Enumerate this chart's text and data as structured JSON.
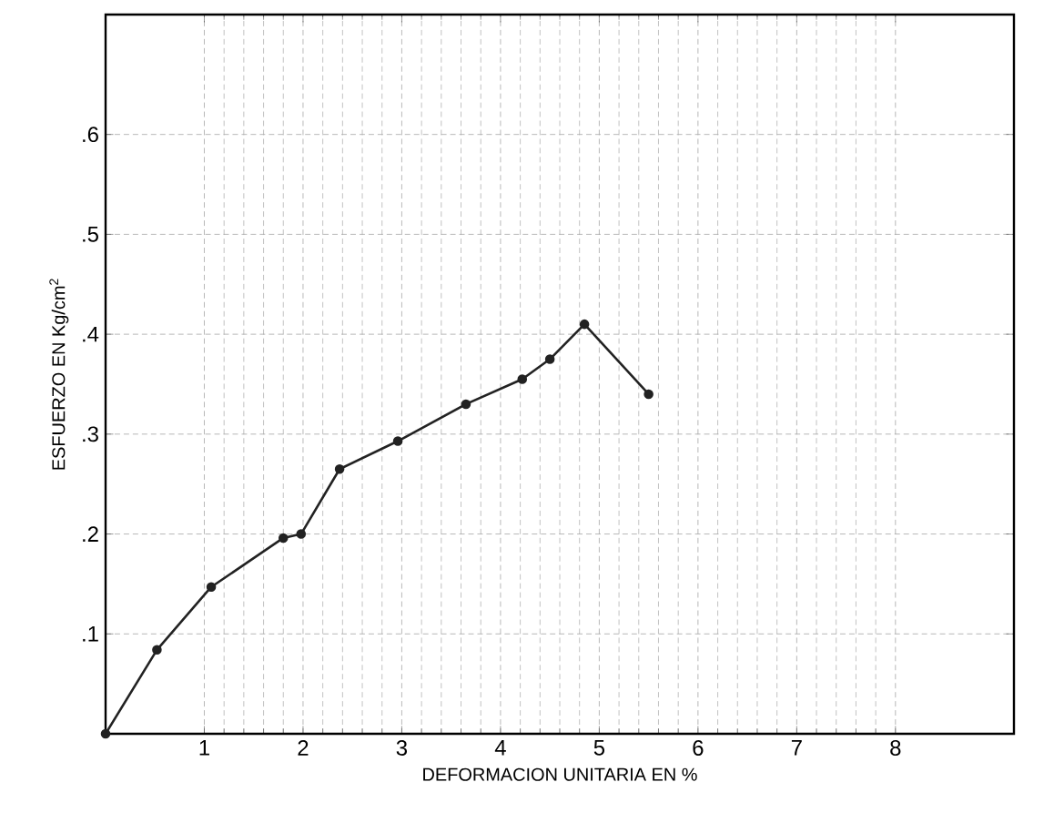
{
  "chart_data": {
    "type": "line",
    "xlabel": "DEFORMACION UNITARIA EN %",
    "ylabel": "ESFUERZO EN Kg/cm$^{2}$",
    "x": [
      0,
      0.52,
      1.07,
      1.8,
      1.98,
      2.37,
      2.96,
      3.65,
      4.22,
      4.5,
      4.85,
      5.5
    ],
    "series": [
      {
        "color": "#222222",
        "values": [
          0,
          0.084,
          0.147,
          0.196,
          0.2,
          0.265,
          0.293,
          0.33,
          0.355,
          0.375,
          0.41,
          0.34
        ]
      }
    ],
    "xlim": [
      0,
      9.2
    ],
    "ylim": [
      0,
      0.72
    ],
    "xticks": [
      1,
      2,
      3,
      4,
      5,
      6,
      7,
      8
    ],
    "yticks": [
      {
        "value": 0.1,
        "label": ".1"
      },
      {
        "value": 0.2,
        "label": ".2"
      },
      {
        "value": 0.3,
        "label": ".3"
      },
      {
        "value": 0.4,
        "label": ".4"
      },
      {
        "value": 0.5,
        "label": ".5"
      },
      {
        "value": 0.6,
        "label": ".6"
      }
    ],
    "grid": true,
    "marker": "circle",
    "line_style": "solid"
  }
}
